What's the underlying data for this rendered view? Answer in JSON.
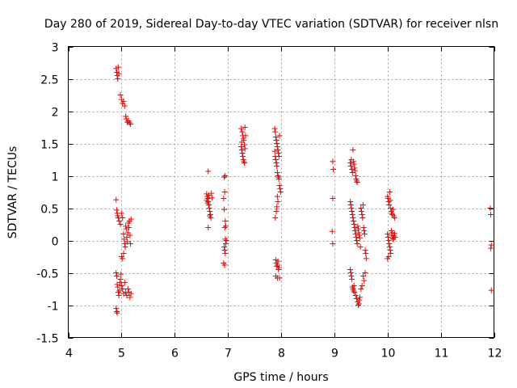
{
  "title": "Day 280 of 2019, Sidereal Day-to-day VTEC variation (SDTVAR) for receiver nlsn",
  "chart_data": {
    "type": "scatter",
    "title": "Day 280 of 2019, Sidereal Day-to-day VTEC variation (SDTVAR) for receiver nlsn",
    "xlabel": "GPS time / hours",
    "ylabel": "SDTVAR / TECUs",
    "xlim": [
      4,
      12
    ],
    "ylim": [
      -1.5,
      3
    ],
    "xticks": [
      "4",
      "5",
      "6",
      "7",
      "8",
      "9",
      "10",
      "11",
      "12"
    ],
    "yticks": [
      "-1.5",
      "-1",
      "-0.5",
      "0",
      "0.5",
      "1",
      "1.5",
      "2",
      "2.5",
      "3"
    ],
    "grid": true,
    "marker": "+",
    "color": "#ff0000",
    "series": [
      {
        "name": "SDTVAR",
        "points": [
          [
            4.9,
            2.66
          ],
          [
            4.91,
            2.6
          ],
          [
            4.92,
            2.55
          ],
          [
            4.93,
            2.5
          ],
          [
            4.94,
            2.68
          ],
          [
            4.95,
            2.58
          ],
          [
            4.98,
            2.25
          ],
          [
            5.0,
            2.18
          ],
          [
            5.02,
            2.12
          ],
          [
            5.04,
            2.15
          ],
          [
            5.06,
            2.08
          ],
          [
            5.08,
            1.92
          ],
          [
            5.09,
            1.88
          ],
          [
            5.11,
            1.83
          ],
          [
            5.13,
            1.85
          ],
          [
            5.15,
            1.82
          ],
          [
            5.17,
            1.8
          ],
          [
            4.9,
            0.63
          ],
          [
            4.91,
            0.47
          ],
          [
            4.92,
            0.42
          ],
          [
            4.93,
            0.38
          ],
          [
            4.94,
            0.35
          ],
          [
            4.96,
            0.3
          ],
          [
            4.98,
            0.25
          ],
          [
            5.0,
            0.42
          ],
          [
            5.02,
            0.35
          ],
          [
            5.04,
            0.1
          ],
          [
            5.05,
            0.02
          ],
          [
            5.06,
            -0.05
          ],
          [
            5.07,
            -0.1
          ],
          [
            5.08,
            0.22
          ],
          [
            5.09,
            0.18
          ],
          [
            5.1,
            0.05
          ],
          [
            5.11,
            -0.02
          ],
          [
            5.12,
            0.12
          ],
          [
            5.13,
            0.27
          ],
          [
            5.14,
            0.2
          ],
          [
            5.15,
            0.3
          ],
          [
            5.16,
            0.08
          ],
          [
            5.17,
            -0.05
          ],
          [
            5.18,
            0.33
          ],
          [
            5.0,
            -0.25
          ],
          [
            5.02,
            -0.28
          ],
          [
            5.04,
            -0.2
          ],
          [
            4.9,
            -0.5
          ],
          [
            4.91,
            -0.55
          ],
          [
            4.92,
            -0.68
          ],
          [
            4.93,
            -0.72
          ],
          [
            4.94,
            -0.8
          ],
          [
            4.95,
            -0.85
          ],
          [
            4.96,
            -0.78
          ],
          [
            4.97,
            -0.65
          ],
          [
            4.98,
            -0.6
          ],
          [
            4.99,
            -0.52
          ],
          [
            5.0,
            -0.7
          ],
          [
            5.02,
            -0.75
          ],
          [
            5.04,
            -0.82
          ],
          [
            5.06,
            -0.65
          ],
          [
            5.08,
            -0.8
          ],
          [
            5.1,
            -0.85
          ],
          [
            5.12,
            -0.75
          ],
          [
            5.14,
            -0.8
          ],
          [
            5.16,
            -0.88
          ],
          [
            5.18,
            -0.82
          ],
          [
            4.9,
            -1.05
          ],
          [
            4.91,
            -1.1
          ],
          [
            4.92,
            -1.12
          ],
          [
            6.63,
            1.07
          ],
          [
            6.6,
            0.72
          ],
          [
            6.61,
            0.68
          ],
          [
            6.62,
            0.65
          ],
          [
            6.63,
            0.6
          ],
          [
            6.64,
            0.55
          ],
          [
            6.65,
            0.5
          ],
          [
            6.66,
            0.45
          ],
          [
            6.67,
            0.4
          ],
          [
            6.68,
            0.35
          ],
          [
            6.6,
            0.62
          ],
          [
            6.62,
            0.58
          ],
          [
            6.64,
            0.7
          ],
          [
            6.66,
            0.38
          ],
          [
            6.63,
            0.2
          ],
          [
            6.69,
            0.73
          ],
          [
            6.7,
            0.66
          ],
          [
            6.93,
            0.98
          ],
          [
            6.95,
            1.0
          ],
          [
            6.92,
            0.65
          ],
          [
            6.94,
            0.75
          ],
          [
            6.93,
            0.48
          ],
          [
            6.95,
            0.3
          ],
          [
            6.96,
            0.22
          ],
          [
            6.94,
            0.2
          ],
          [
            6.95,
            0.02
          ],
          [
            6.97,
            0.0
          ],
          [
            6.96,
            -0.05
          ],
          [
            6.93,
            -0.1
          ],
          [
            6.94,
            -0.15
          ],
          [
            6.95,
            -0.2
          ],
          [
            6.92,
            -0.35
          ],
          [
            6.94,
            -0.38
          ],
          [
            7.25,
            1.73
          ],
          [
            7.27,
            1.68
          ],
          [
            7.28,
            1.62
          ],
          [
            7.29,
            1.58
          ],
          [
            7.3,
            1.55
          ],
          [
            7.31,
            1.48
          ],
          [
            7.32,
            1.42
          ],
          [
            7.26,
            1.4
          ],
          [
            7.27,
            1.35
          ],
          [
            7.28,
            1.3
          ],
          [
            7.29,
            1.25
          ],
          [
            7.3,
            1.22
          ],
          [
            7.31,
            1.2
          ],
          [
            7.32,
            1.75
          ],
          [
            7.33,
            1.62
          ],
          [
            7.25,
            1.45
          ],
          [
            7.26,
            1.52
          ],
          [
            7.88,
            1.73
          ],
          [
            7.89,
            1.68
          ],
          [
            7.9,
            1.6
          ],
          [
            7.91,
            1.55
          ],
          [
            7.92,
            1.5
          ],
          [
            7.93,
            1.45
          ],
          [
            7.94,
            1.4
          ],
          [
            7.95,
            1.35
          ],
          [
            7.96,
            1.3
          ],
          [
            7.97,
            1.62
          ],
          [
            7.88,
            1.38
          ],
          [
            7.89,
            1.3
          ],
          [
            7.9,
            1.25
          ],
          [
            7.91,
            1.2
          ],
          [
            7.92,
            1.15
          ],
          [
            7.93,
            1.05
          ],
          [
            7.94,
            1.0
          ],
          [
            7.95,
            0.98
          ],
          [
            7.96,
            0.95
          ],
          [
            7.97,
            0.85
          ],
          [
            7.98,
            0.8
          ],
          [
            7.99,
            0.75
          ],
          [
            7.93,
            0.68
          ],
          [
            7.94,
            0.6
          ],
          [
            7.92,
            0.52
          ],
          [
            7.91,
            0.45
          ],
          [
            7.89,
            0.35
          ],
          [
            7.9,
            -0.3
          ],
          [
            7.91,
            -0.35
          ],
          [
            7.92,
            -0.4
          ],
          [
            7.93,
            -0.38
          ],
          [
            7.94,
            -0.32
          ],
          [
            7.95,
            -0.45
          ],
          [
            7.96,
            -0.42
          ],
          [
            7.9,
            -0.55
          ],
          [
            7.93,
            -0.58
          ],
          [
            7.97,
            -0.58
          ],
          [
            8.97,
            1.22
          ],
          [
            8.98,
            1.1
          ],
          [
            8.97,
            0.65
          ],
          [
            8.96,
            0.14
          ],
          [
            8.97,
            -0.05
          ],
          [
            9.3,
            1.2
          ],
          [
            9.31,
            1.15
          ],
          [
            9.32,
            1.25
          ],
          [
            9.33,
            1.1
          ],
          [
            9.34,
            1.05
          ],
          [
            9.35,
            1.4
          ],
          [
            9.36,
            1.22
          ],
          [
            9.37,
            1.18
          ],
          [
            9.38,
            1.12
          ],
          [
            9.39,
            1.08
          ],
          [
            9.4,
            1.0
          ],
          [
            9.41,
            0.95
          ],
          [
            9.42,
            0.92
          ],
          [
            9.43,
            0.9
          ],
          [
            9.3,
            0.6
          ],
          [
            9.31,
            0.55
          ],
          [
            9.32,
            0.5
          ],
          [
            9.33,
            0.45
          ],
          [
            9.34,
            0.4
          ],
          [
            9.35,
            0.35
          ],
          [
            9.36,
            0.3
          ],
          [
            9.37,
            0.25
          ],
          [
            9.38,
            0.2
          ],
          [
            9.39,
            0.15
          ],
          [
            9.4,
            0.1
          ],
          [
            9.41,
            0.05
          ],
          [
            9.42,
            0.0
          ],
          [
            9.43,
            -0.05
          ],
          [
            9.44,
            0.22
          ],
          [
            9.45,
            0.18
          ],
          [
            9.46,
            0.12
          ],
          [
            9.47,
            0.08
          ],
          [
            9.48,
            0.04
          ],
          [
            9.49,
            -0.1
          ],
          [
            9.5,
            0.5
          ],
          [
            9.51,
            0.45
          ],
          [
            9.52,
            0.4
          ],
          [
            9.53,
            0.35
          ],
          [
            9.54,
            0.55
          ],
          [
            9.55,
            0.2
          ],
          [
            9.56,
            0.15
          ],
          [
            9.57,
            0.1
          ],
          [
            9.58,
            -0.15
          ],
          [
            9.59,
            -0.2
          ],
          [
            9.6,
            -0.28
          ],
          [
            9.3,
            -0.45
          ],
          [
            9.31,
            -0.5
          ],
          [
            9.32,
            -0.55
          ],
          [
            9.33,
            -0.6
          ],
          [
            9.34,
            -0.72
          ],
          [
            9.35,
            -0.75
          ],
          [
            9.36,
            -0.78
          ],
          [
            9.37,
            -0.7
          ],
          [
            9.38,
            -0.8
          ],
          [
            9.4,
            -0.85
          ],
          [
            9.42,
            -0.9
          ],
          [
            9.44,
            -0.95
          ],
          [
            9.45,
            -1.0
          ],
          [
            9.46,
            -0.98
          ],
          [
            9.47,
            -0.92
          ],
          [
            9.48,
            -0.88
          ],
          [
            9.5,
            -0.75
          ],
          [
            9.52,
            -0.7
          ],
          [
            9.54,
            -0.55
          ],
          [
            9.56,
            -0.62
          ],
          [
            9.58,
            -0.5
          ],
          [
            10.0,
            0.68
          ],
          [
            10.01,
            0.65
          ],
          [
            10.02,
            0.6
          ],
          [
            10.03,
            0.55
          ],
          [
            10.04,
            0.75
          ],
          [
            10.05,
            0.62
          ],
          [
            10.06,
            0.5
          ],
          [
            10.07,
            0.45
          ],
          [
            10.08,
            0.42
          ],
          [
            10.09,
            0.4
          ],
          [
            10.1,
            0.48
          ],
          [
            10.12,
            0.38
          ],
          [
            10.13,
            0.35
          ],
          [
            10.0,
            0.1
          ],
          [
            10.01,
            0.05
          ],
          [
            10.02,
            0.0
          ],
          [
            10.03,
            -0.05
          ],
          [
            10.04,
            -0.1
          ],
          [
            10.05,
            -0.15
          ],
          [
            10.06,
            -0.2
          ],
          [
            10.07,
            0.15
          ],
          [
            10.08,
            0.08
          ],
          [
            10.09,
            0.12
          ],
          [
            10.1,
            0.03
          ],
          [
            10.11,
            0.02
          ],
          [
            10.12,
            0.07
          ],
          [
            10.13,
            0.11
          ],
          [
            10.14,
            0.05
          ],
          [
            10.0,
            -0.28
          ],
          [
            10.02,
            -0.25
          ],
          [
            11.93,
            0.5
          ],
          [
            11.94,
            0.4
          ],
          [
            11.95,
            -0.07
          ],
          [
            11.94,
            -0.12
          ],
          [
            11.95,
            -0.77
          ]
        ]
      }
    ]
  }
}
